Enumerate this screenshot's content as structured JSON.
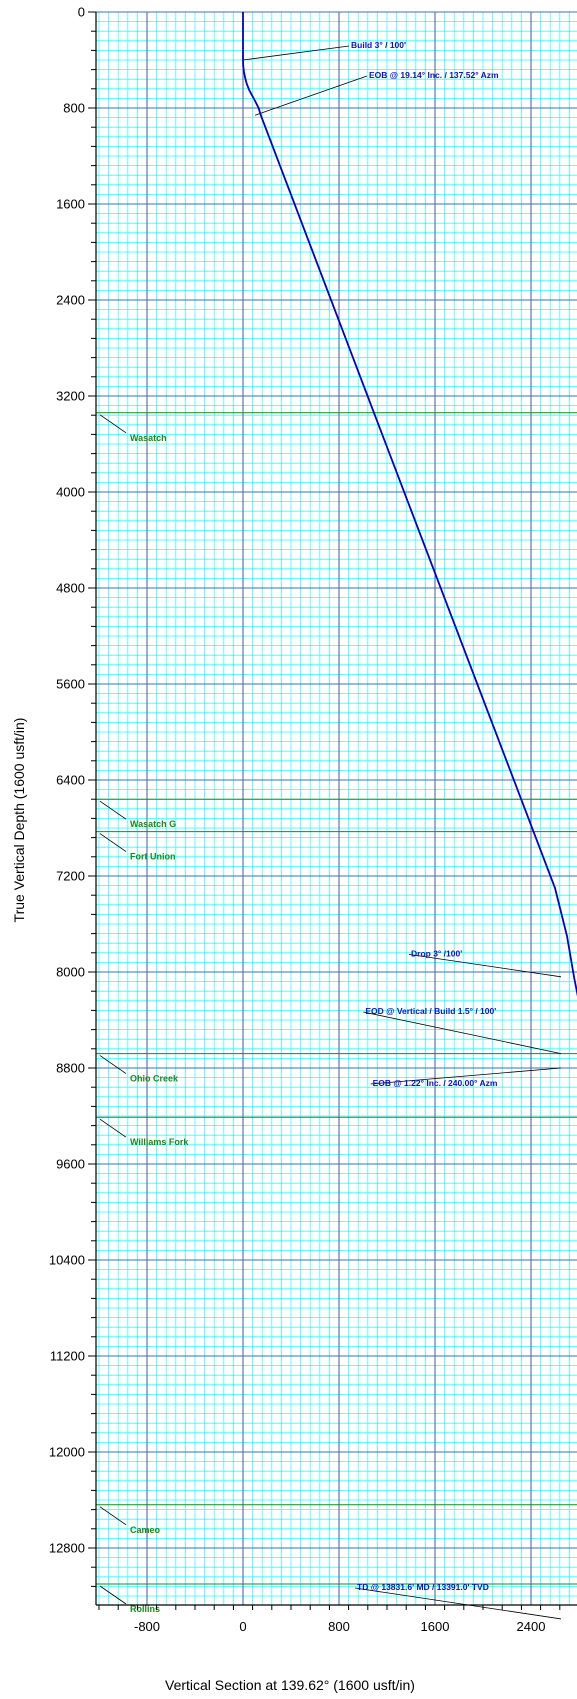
{
  "chart_data": {
    "type": "line",
    "xlabel": "Vertical Section at 139.62° (1600 usft/in)",
    "ylabel": "True Vertical Depth (1600 usft/in)",
    "xlim": [
      -1200,
      2750
    ],
    "ylim": [
      0,
      13800
    ],
    "y_inverted": true,
    "x_ticks": [
      -800,
      0,
      800,
      1600,
      2400
    ],
    "y_ticks": [
      0,
      800,
      1600,
      2400,
      3200,
      4000,
      4800,
      5600,
      6400,
      7200,
      8000,
      8800,
      9600,
      10400,
      11200,
      12000,
      12800
    ],
    "grid": true,
    "colors": {
      "major_grid": "#4a6fa5",
      "minor_grid": "#33ffff",
      "path": "#0000cc",
      "formation": "#1a8a1a",
      "annotation": "#1010c8"
    },
    "series": [
      {
        "points": [
          [
            0,
            0
          ],
          [
            0,
            400
          ],
          [
            2,
            450
          ],
          [
            8,
            500
          ],
          [
            18,
            550
          ],
          [
            32,
            600
          ],
          [
            52,
            650
          ],
          [
            78,
            700
          ],
          [
            105,
            750
          ],
          [
            130,
            800
          ],
          [
            148,
            860
          ],
          [
            1000,
            3100
          ],
          [
            1800,
            5200
          ],
          [
            2600,
            7300
          ],
          [
            2700,
            7700
          ],
          [
            2760,
            8050
          ],
          [
            2810,
            8300
          ],
          [
            2838,
            8500
          ],
          [
            2848,
            8700
          ],
          [
            2846,
            8800
          ],
          [
            2840,
            8900
          ],
          [
            2838,
            13391
          ]
        ]
      }
    ],
    "formations": [
      {
        "name": "Wasatch",
        "tvd": 3340
      },
      {
        "name": "Wasatch G",
        "tvd": 6560
      },
      {
        "name": "Fort Union",
        "tvd": 6830
      },
      {
        "name": "Ohio Creek",
        "tvd": 8680
      },
      {
        "name": "Williams Fork",
        "tvd": 9210
      },
      {
        "name": "Cameo",
        "tvd": 12440
      },
      {
        "name": "Rollins",
        "tvd": 13100
      }
    ],
    "annotations": [
      {
        "text": "Build 3° / 100'",
        "x": 0,
        "y": 400,
        "label_x": 900,
        "label_y": 300
      },
      {
        "text": "EOB @ 19.14° Inc. / 137.52° Azm",
        "x": 100,
        "y": 860,
        "label_x": 1050,
        "label_y": 550
      },
      {
        "text": "Drop 3° /100'",
        "x": 2650,
        "y": 8040,
        "label_x": 1400,
        "label_y": 7870
      },
      {
        "text": "EOD @ Vertical / Build 1.5° / 100'",
        "x": 2650,
        "y": 8680,
        "label_x": 1020,
        "label_y": 8350
      },
      {
        "text": "EOB @ 1.22° Inc. / 240.00° Azm",
        "x": 2650,
        "y": 8800,
        "label_x": 1080,
        "label_y": 8950
      },
      {
        "text": "TD @ 13831.6' MD / 13391.0' TVD",
        "x": 2650,
        "y": 13391,
        "label_x": 950,
        "label_y": 13150
      }
    ]
  }
}
